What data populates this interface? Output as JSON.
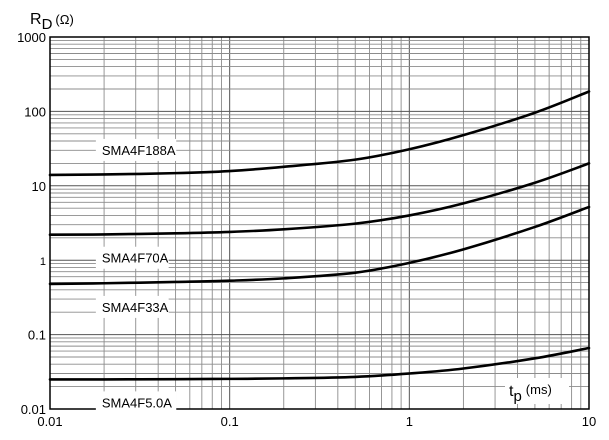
{
  "chart_data": {
    "type": "line",
    "xscale": "log",
    "yscale": "log",
    "xlim": [
      0.01,
      10
    ],
    "ylim": [
      0.01,
      1000
    ],
    "grid": true,
    "title": "",
    "y_label_main": "R",
    "y_label_sub": "D",
    "y_label_unit": "(Ω)",
    "x_label_main": "t",
    "x_label_sub": "p",
    "x_label_unit": "(ms)",
    "x_ticks": [
      {
        "value": 0.01,
        "label": "0.01"
      },
      {
        "value": 0.1,
        "label": "0.1"
      },
      {
        "value": 1,
        "label": "1"
      },
      {
        "value": 10,
        "label": "10"
      }
    ],
    "y_ticks": [
      {
        "value": 0.01,
        "label": "0.01"
      },
      {
        "value": 0.1,
        "label": "0.1"
      },
      {
        "value": 1,
        "label": "1"
      },
      {
        "value": 10,
        "label": "10"
      },
      {
        "value": 100,
        "label": "100"
      },
      {
        "value": 1000,
        "label": "1000"
      }
    ],
    "series": [
      {
        "name": "SMA4F188A",
        "x": [
          0.01,
          0.02,
          0.05,
          0.1,
          0.2,
          0.5,
          1,
          2,
          5,
          10
        ],
        "y": [
          14,
          14.2,
          14.8,
          15.8,
          18,
          22.5,
          31,
          48,
          96,
          185
        ]
      },
      {
        "name": "SMA4F70A",
        "x": [
          0.01,
          0.02,
          0.05,
          0.1,
          0.2,
          0.5,
          1,
          2,
          5,
          10
        ],
        "y": [
          2.2,
          2.22,
          2.3,
          2.4,
          2.6,
          3.1,
          4.0,
          5.8,
          11,
          20
        ]
      },
      {
        "name": "SMA4F33A",
        "x": [
          0.01,
          0.02,
          0.05,
          0.1,
          0.2,
          0.5,
          1,
          2,
          5,
          10
        ],
        "y": [
          0.48,
          0.49,
          0.51,
          0.53,
          0.57,
          0.68,
          0.92,
          1.4,
          2.8,
          5.2
        ]
      },
      {
        "name": "SMA4F5.0A",
        "x": [
          0.01,
          0.02,
          0.05,
          0.1,
          0.2,
          0.5,
          1,
          2,
          5,
          10
        ],
        "y": [
          0.025,
          0.025,
          0.0252,
          0.0254,
          0.0258,
          0.027,
          0.03,
          0.035,
          0.048,
          0.066
        ]
      }
    ],
    "line_color": "#000000",
    "grid_color": "#8c8c8c",
    "axis_color": "#000000"
  }
}
